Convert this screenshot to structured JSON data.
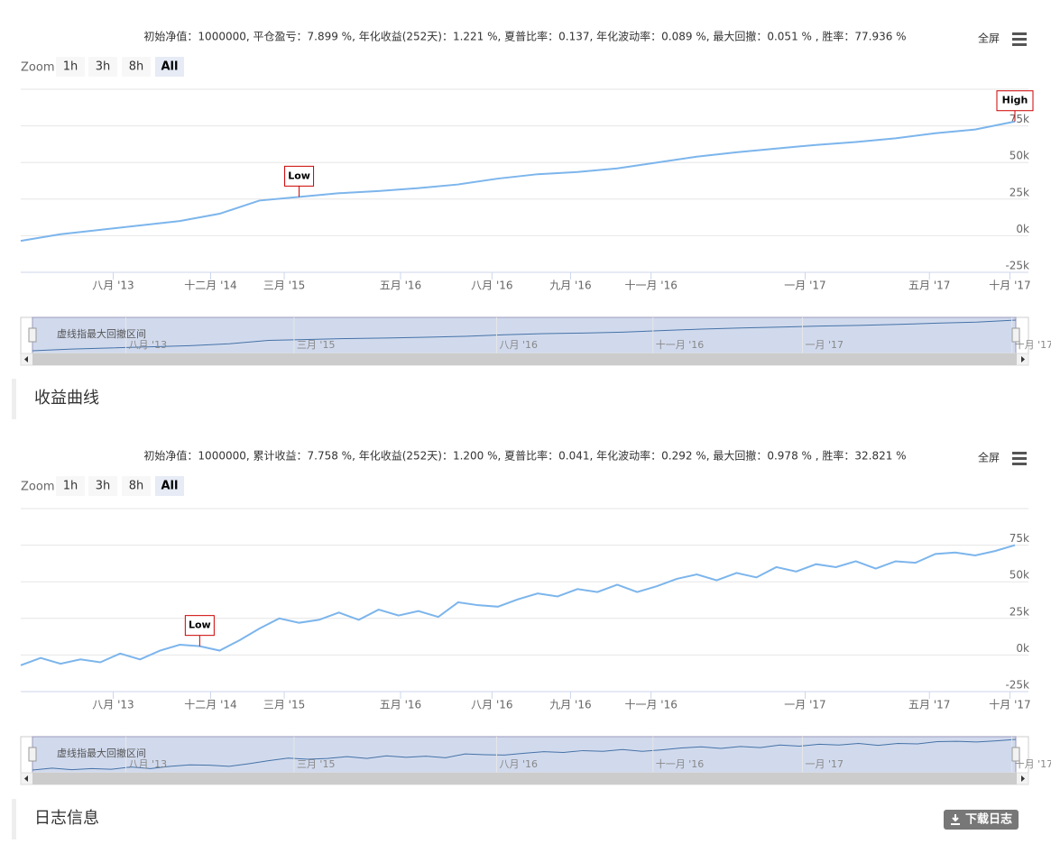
{
  "chart_data": [
    {
      "type": "line",
      "title": "初始净值：1000000, 平仓盈亏：7.899 %, 年化收益(252天)：1.221 %, 夏普比率：0.137, 年化波动率：0.089 %, 最大回撤：0.051 % , 胜率：77.936 %",
      "fullscreen_label": "全屏",
      "zoom": {
        "label": "Zoom",
        "buttons": [
          "1h",
          "3h",
          "8h",
          "All"
        ],
        "selected": 3
      },
      "x": [
        0,
        4,
        8,
        12,
        16,
        20,
        24,
        28,
        32,
        36,
        40,
        44,
        48,
        52,
        56,
        60,
        64,
        68,
        72,
        76,
        80,
        84,
        88,
        92,
        96,
        100
      ],
      "series": [
        {
          "color": "#7cb5ec",
          "values": [
            -3500,
            1000,
            4000,
            7000,
            10000,
            15000,
            24000,
            26500,
            29000,
            30500,
            32500,
            35000,
            39000,
            42000,
            43500,
            46000,
            50000,
            54000,
            57000,
            59500,
            62000,
            64000,
            66500,
            70000,
            72500,
            78000
          ]
        }
      ],
      "xlim": [
        0,
        100
      ],
      "xticks": [
        {
          "value": 9.3,
          "label": "八月 '13"
        },
        {
          "value": 19.1,
          "label": "十二月 '14"
        },
        {
          "value": 26.5,
          "label": "三月 '15"
        },
        {
          "value": 38.2,
          "label": "五月 '16"
        },
        {
          "value": 47.4,
          "label": "八月 '16"
        },
        {
          "value": 55.3,
          "label": "九月 '16"
        },
        {
          "value": 63.4,
          "label": "十一月 '16"
        },
        {
          "value": 78.9,
          "label": "一月 '17"
        },
        {
          "value": 91.4,
          "label": "五月 '17"
        },
        {
          "value": 99.5,
          "label": "十月 '17"
        }
      ],
      "ylim": [
        -25000,
        100000
      ],
      "yticks": [
        {
          "value": -25000,
          "label": "-25k"
        },
        {
          "value": 0,
          "label": "0k"
        },
        {
          "value": 25000,
          "label": "25k"
        },
        {
          "value": 50000,
          "label": "50k"
        },
        {
          "value": 75000,
          "label": "75k"
        }
      ],
      "grid": true,
      "annotations": [
        {
          "text": "Low",
          "x": 28
        },
        {
          "text": "High",
          "x": 100
        }
      ],
      "navigator": {
        "label": "虚线指最大回撤区间",
        "xticks": [
          {
            "value": 9.5,
            "label": "八月 '13"
          },
          {
            "value": 26.6,
            "label": "三月 '15"
          },
          {
            "value": 47.2,
            "label": "八月 '16"
          },
          {
            "value": 63.1,
            "label": "十一月 '16"
          },
          {
            "value": 78.3,
            "label": "一月 '17"
          },
          {
            "value": 99.6,
            "label": "十月 '17"
          }
        ]
      }
    },
    {
      "type": "line",
      "title": "初始净值：1000000, 累计收益：7.758 %, 年化收益(252天)：1.200 %, 夏普比率：0.041, 年化波动率：0.292 %, 最大回撤：0.978 % , 胜率：32.821 %",
      "fullscreen_label": "全屏",
      "zoom": {
        "label": "Zoom",
        "buttons": [
          "1h",
          "3h",
          "8h",
          "All"
        ],
        "selected": 3
      },
      "x": [
        0,
        2,
        4,
        6,
        8,
        10,
        12,
        14,
        16,
        18,
        20,
        22,
        24,
        26,
        28,
        30,
        32,
        34,
        36,
        38,
        40,
        42,
        44,
        46,
        48,
        50,
        52,
        54,
        56,
        58,
        60,
        62,
        64,
        66,
        68,
        70,
        72,
        74,
        76,
        78,
        80,
        82,
        84,
        86,
        88,
        90,
        92,
        94,
        96,
        98,
        100
      ],
      "series": [
        {
          "color": "#7cb5ec",
          "values": [
            -7000,
            -2000,
            -6000,
            -3000,
            -5000,
            1000,
            -3000,
            3000,
            7000,
            6000,
            3000,
            10000,
            18000,
            25000,
            22000,
            24000,
            29000,
            24000,
            31000,
            27000,
            30000,
            26000,
            36000,
            34000,
            33000,
            38000,
            42000,
            40000,
            45000,
            43000,
            48000,
            43000,
            47000,
            52000,
            55000,
            51000,
            56000,
            53000,
            60000,
            57000,
            62000,
            60000,
            64000,
            59000,
            64000,
            63000,
            69000,
            70000,
            68000,
            71000,
            75000
          ]
        }
      ],
      "xlim": [
        0,
        100
      ],
      "xticks": [
        {
          "value": 9.3,
          "label": "八月 '13"
        },
        {
          "value": 19.1,
          "label": "十二月 '14"
        },
        {
          "value": 26.5,
          "label": "三月 '15"
        },
        {
          "value": 38.2,
          "label": "五月 '16"
        },
        {
          "value": 47.4,
          "label": "八月 '16"
        },
        {
          "value": 55.3,
          "label": "九月 '16"
        },
        {
          "value": 63.4,
          "label": "十一月 '16"
        },
        {
          "value": 78.9,
          "label": "一月 '17"
        },
        {
          "value": 91.4,
          "label": "五月 '17"
        },
        {
          "value": 99.5,
          "label": "十月 '17"
        }
      ],
      "ylim": [
        -25000,
        100000
      ],
      "yticks": [
        {
          "value": -25000,
          "label": "-25k"
        },
        {
          "value": 0,
          "label": "0k"
        },
        {
          "value": 25000,
          "label": "25k"
        },
        {
          "value": 50000,
          "label": "50k"
        },
        {
          "value": 75000,
          "label": "75k"
        }
      ],
      "grid": true,
      "annotations": [
        {
          "text": "Low",
          "x": 18
        }
      ],
      "navigator": {
        "label": "虚线指最大回撤区间",
        "xticks": [
          {
            "value": 9.5,
            "label": "八月 '13"
          },
          {
            "value": 26.6,
            "label": "三月 '15"
          },
          {
            "value": 47.2,
            "label": "八月 '16"
          },
          {
            "value": 63.1,
            "label": "十一月 '16"
          },
          {
            "value": 78.3,
            "label": "一月 '17"
          },
          {
            "value": 99.6,
            "label": "十月 '17"
          }
        ]
      }
    }
  ],
  "sections": [
    "收益曲线",
    "日志信息"
  ],
  "download_button": "下载日志"
}
